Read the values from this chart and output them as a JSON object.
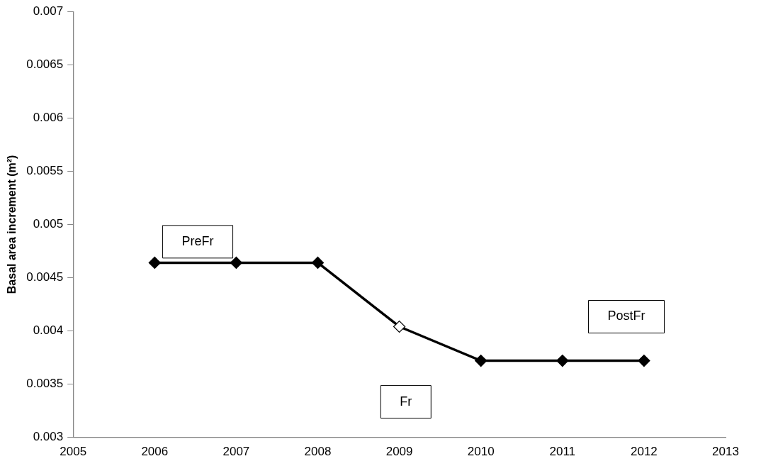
{
  "chart_data": {
    "type": "line",
    "ylabel": "Basal area increment (m²)",
    "x": [
      2006,
      2007,
      2008,
      2009,
      2010,
      2011,
      2012
    ],
    "series": [
      {
        "color": "#000000",
        "colors": [
          "#000000",
          "#000000",
          "#000000",
          "#ffffff",
          "#000000",
          "#000000",
          "#000000"
        ],
        "values": [
          0.00464,
          0.00464,
          0.00464,
          0.00404,
          0.00372,
          0.00372,
          0.00372
        ]
      }
    ],
    "xlim": [
      2005,
      2013
    ],
    "xticks": [
      2005,
      2006,
      2007,
      2008,
      2009,
      2010,
      2011,
      2012,
      2013
    ],
    "ylim": [
      0.003,
      0.007
    ],
    "yticks": [
      0.003,
      0.0035,
      0.004,
      0.0045,
      0.005,
      0.0055,
      0.006,
      0.0065,
      0.007
    ],
    "annotations": [
      "PreFr",
      "Fr",
      "PostFr"
    ],
    "grid": false,
    "legend": false,
    "marker": "diamond",
    "line_style": "solid"
  }
}
